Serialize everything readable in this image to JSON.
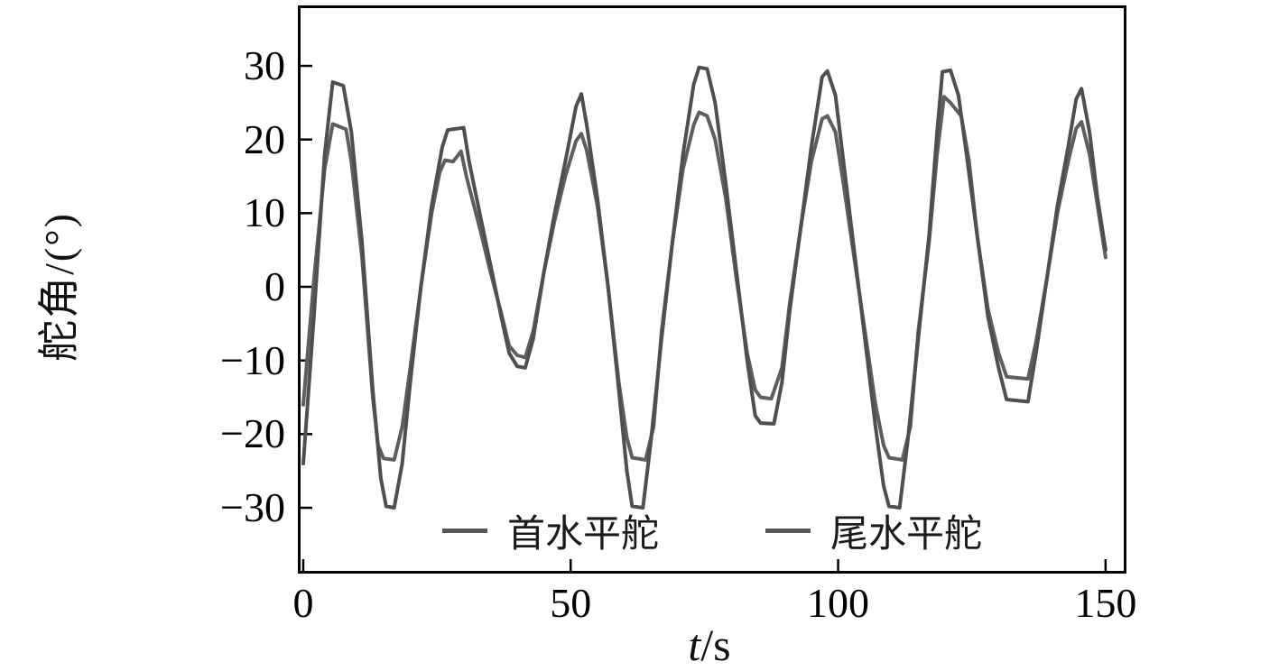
{
  "chart_data": {
    "type": "line",
    "title": "",
    "ylabel": "舵角/(°)",
    "xlabel_var": "t",
    "xlabel_unit": "/s",
    "xlim": [
      -0.5,
      153.4
    ],
    "ylim": [
      -38.57,
      37.84
    ],
    "grid": false,
    "frame": true,
    "xticks": [
      0,
      50,
      100,
      150
    ],
    "xtick_labels": [
      "0",
      "50",
      "100",
      "150"
    ],
    "yticks": [
      30,
      20,
      10,
      0,
      -10,
      -20,
      -30
    ],
    "ytick_labels": [
      "30",
      "20",
      "10",
      "0",
      "−10",
      "−20",
      "−30"
    ],
    "legend": {
      "position": "bottom-center-inside",
      "entries": [
        {
          "label": "首水平舵",
          "color": "#565656"
        },
        {
          "label": "尾水平舵",
          "color": "#565656"
        }
      ]
    },
    "series": [
      {
        "name": "首水平舵",
        "color": "#5e5e5e",
        "width": 4,
        "points": [
          [
            0,
            -16
          ],
          [
            2,
            1
          ],
          [
            4,
            16
          ],
          [
            5.5,
            22.1
          ],
          [
            8,
            21.4
          ],
          [
            9,
            17
          ],
          [
            11,
            4
          ],
          [
            13,
            -15
          ],
          [
            14,
            -21.5
          ],
          [
            15,
            -23.3
          ],
          [
            17,
            -23.5
          ],
          [
            18.5,
            -19
          ],
          [
            20,
            -11
          ],
          [
            22,
            0
          ],
          [
            24,
            10
          ],
          [
            25.5,
            15.5
          ],
          [
            26.5,
            17.2
          ],
          [
            28,
            17
          ],
          [
            29.5,
            18.4
          ],
          [
            30.5,
            15
          ],
          [
            33,
            8
          ],
          [
            35,
            2
          ],
          [
            37,
            -3.5
          ],
          [
            38.5,
            -8
          ],
          [
            40,
            -9.3
          ],
          [
            41.5,
            -9.6
          ],
          [
            43,
            -6
          ],
          [
            45,
            2
          ],
          [
            47,
            9
          ],
          [
            49,
            15
          ],
          [
            51,
            19.8
          ],
          [
            52,
            20.8
          ],
          [
            53,
            18.5
          ],
          [
            55,
            11
          ],
          [
            57,
            0
          ],
          [
            59,
            -13
          ],
          [
            60.5,
            -20.5
          ],
          [
            61.5,
            -23.2
          ],
          [
            64,
            -23.5
          ],
          [
            65.5,
            -19
          ],
          [
            67,
            -6
          ],
          [
            69,
            6
          ],
          [
            71,
            16
          ],
          [
            73,
            22
          ],
          [
            74,
            23.7
          ],
          [
            75.5,
            23.2
          ],
          [
            77,
            20
          ],
          [
            79,
            12
          ],
          [
            81,
            1
          ],
          [
            83,
            -9
          ],
          [
            84.5,
            -14
          ],
          [
            85.5,
            -15
          ],
          [
            87.5,
            -15.2
          ],
          [
            89.5,
            -11
          ],
          [
            91,
            -2
          ],
          [
            93,
            8
          ],
          [
            95,
            17
          ],
          [
            97,
            22.8
          ],
          [
            98,
            23.2
          ],
          [
            99.5,
            21
          ],
          [
            101,
            14
          ],
          [
            103,
            4
          ],
          [
            105,
            -6
          ],
          [
            107,
            -16
          ],
          [
            108.5,
            -21.5
          ],
          [
            109.5,
            -23.2
          ],
          [
            112,
            -23.5
          ],
          [
            113.5,
            -19
          ],
          [
            115,
            -6
          ],
          [
            117,
            6
          ],
          [
            118.5,
            18
          ],
          [
            119.8,
            25.8
          ],
          [
            121,
            25
          ],
          [
            123,
            23.2
          ],
          [
            124.5,
            17
          ],
          [
            126,
            7
          ],
          [
            128,
            -3
          ],
          [
            130,
            -9
          ],
          [
            131.5,
            -12.2
          ],
          [
            135.5,
            -12.5
          ],
          [
            137,
            -7.5
          ],
          [
            139,
            1
          ],
          [
            141,
            10
          ],
          [
            143,
            17
          ],
          [
            144.5,
            21.5
          ],
          [
            145.5,
            22.4
          ],
          [
            147,
            18
          ],
          [
            148.5,
            11
          ],
          [
            150,
            4
          ]
        ]
      },
      {
        "name": "尾水平舵",
        "color": "#4f4f4f",
        "width": 4,
        "points": [
          [
            0,
            -24
          ],
          [
            2,
            -4
          ],
          [
            4,
            18
          ],
          [
            5.5,
            27.8
          ],
          [
            7.5,
            27.3
          ],
          [
            9,
            21
          ],
          [
            11,
            6
          ],
          [
            13,
            -14
          ],
          [
            14.5,
            -26
          ],
          [
            15.5,
            -29.8
          ],
          [
            17,
            -30
          ],
          [
            18.5,
            -24
          ],
          [
            20,
            -13
          ],
          [
            22,
            0
          ],
          [
            24,
            11
          ],
          [
            26,
            19
          ],
          [
            27,
            21.3
          ],
          [
            30,
            21.6
          ],
          [
            31,
            17
          ],
          [
            33,
            10
          ],
          [
            35,
            3
          ],
          [
            37,
            -4
          ],
          [
            38.5,
            -9
          ],
          [
            40,
            -10.8
          ],
          [
            41.5,
            -11
          ],
          [
            43,
            -7
          ],
          [
            45,
            2
          ],
          [
            47,
            10
          ],
          [
            49,
            17
          ],
          [
            51,
            24.5
          ],
          [
            52,
            26.2
          ],
          [
            53,
            22
          ],
          [
            55,
            12
          ],
          [
            57,
            0
          ],
          [
            59,
            -14
          ],
          [
            60.5,
            -25
          ],
          [
            61.5,
            -29.8
          ],
          [
            63.5,
            -30
          ],
          [
            65,
            -21
          ],
          [
            67,
            -7
          ],
          [
            69,
            6
          ],
          [
            71,
            18
          ],
          [
            73,
            27.5
          ],
          [
            74,
            29.8
          ],
          [
            75.5,
            29.6
          ],
          [
            77,
            25
          ],
          [
            79,
            14
          ],
          [
            81,
            2
          ],
          [
            83,
            -10
          ],
          [
            84.5,
            -17.5
          ],
          [
            85.5,
            -18.5
          ],
          [
            88,
            -18.6
          ],
          [
            89.5,
            -13
          ],
          [
            91,
            -3
          ],
          [
            93,
            8
          ],
          [
            95,
            19
          ],
          [
            97,
            28.5
          ],
          [
            98,
            29.3
          ],
          [
            99.5,
            26
          ],
          [
            101,
            17
          ],
          [
            103,
            5
          ],
          [
            105,
            -7
          ],
          [
            107,
            -19
          ],
          [
            108.5,
            -27
          ],
          [
            109.5,
            -29.8
          ],
          [
            111.5,
            -30
          ],
          [
            113,
            -21
          ],
          [
            115,
            -7
          ],
          [
            117,
            7
          ],
          [
            118.5,
            21
          ],
          [
            119.5,
            29.2
          ],
          [
            121,
            29.4
          ],
          [
            122.5,
            26
          ],
          [
            124,
            18
          ],
          [
            126,
            7
          ],
          [
            128,
            -4
          ],
          [
            130,
            -11
          ],
          [
            131.5,
            -15.3
          ],
          [
            135.5,
            -15.6
          ],
          [
            137,
            -9
          ],
          [
            139,
            1
          ],
          [
            141,
            11
          ],
          [
            143,
            19
          ],
          [
            144.5,
            25.5
          ],
          [
            145.5,
            26.9
          ],
          [
            147,
            21
          ],
          [
            148.5,
            12
          ],
          [
            150,
            5
          ]
        ]
      }
    ]
  }
}
